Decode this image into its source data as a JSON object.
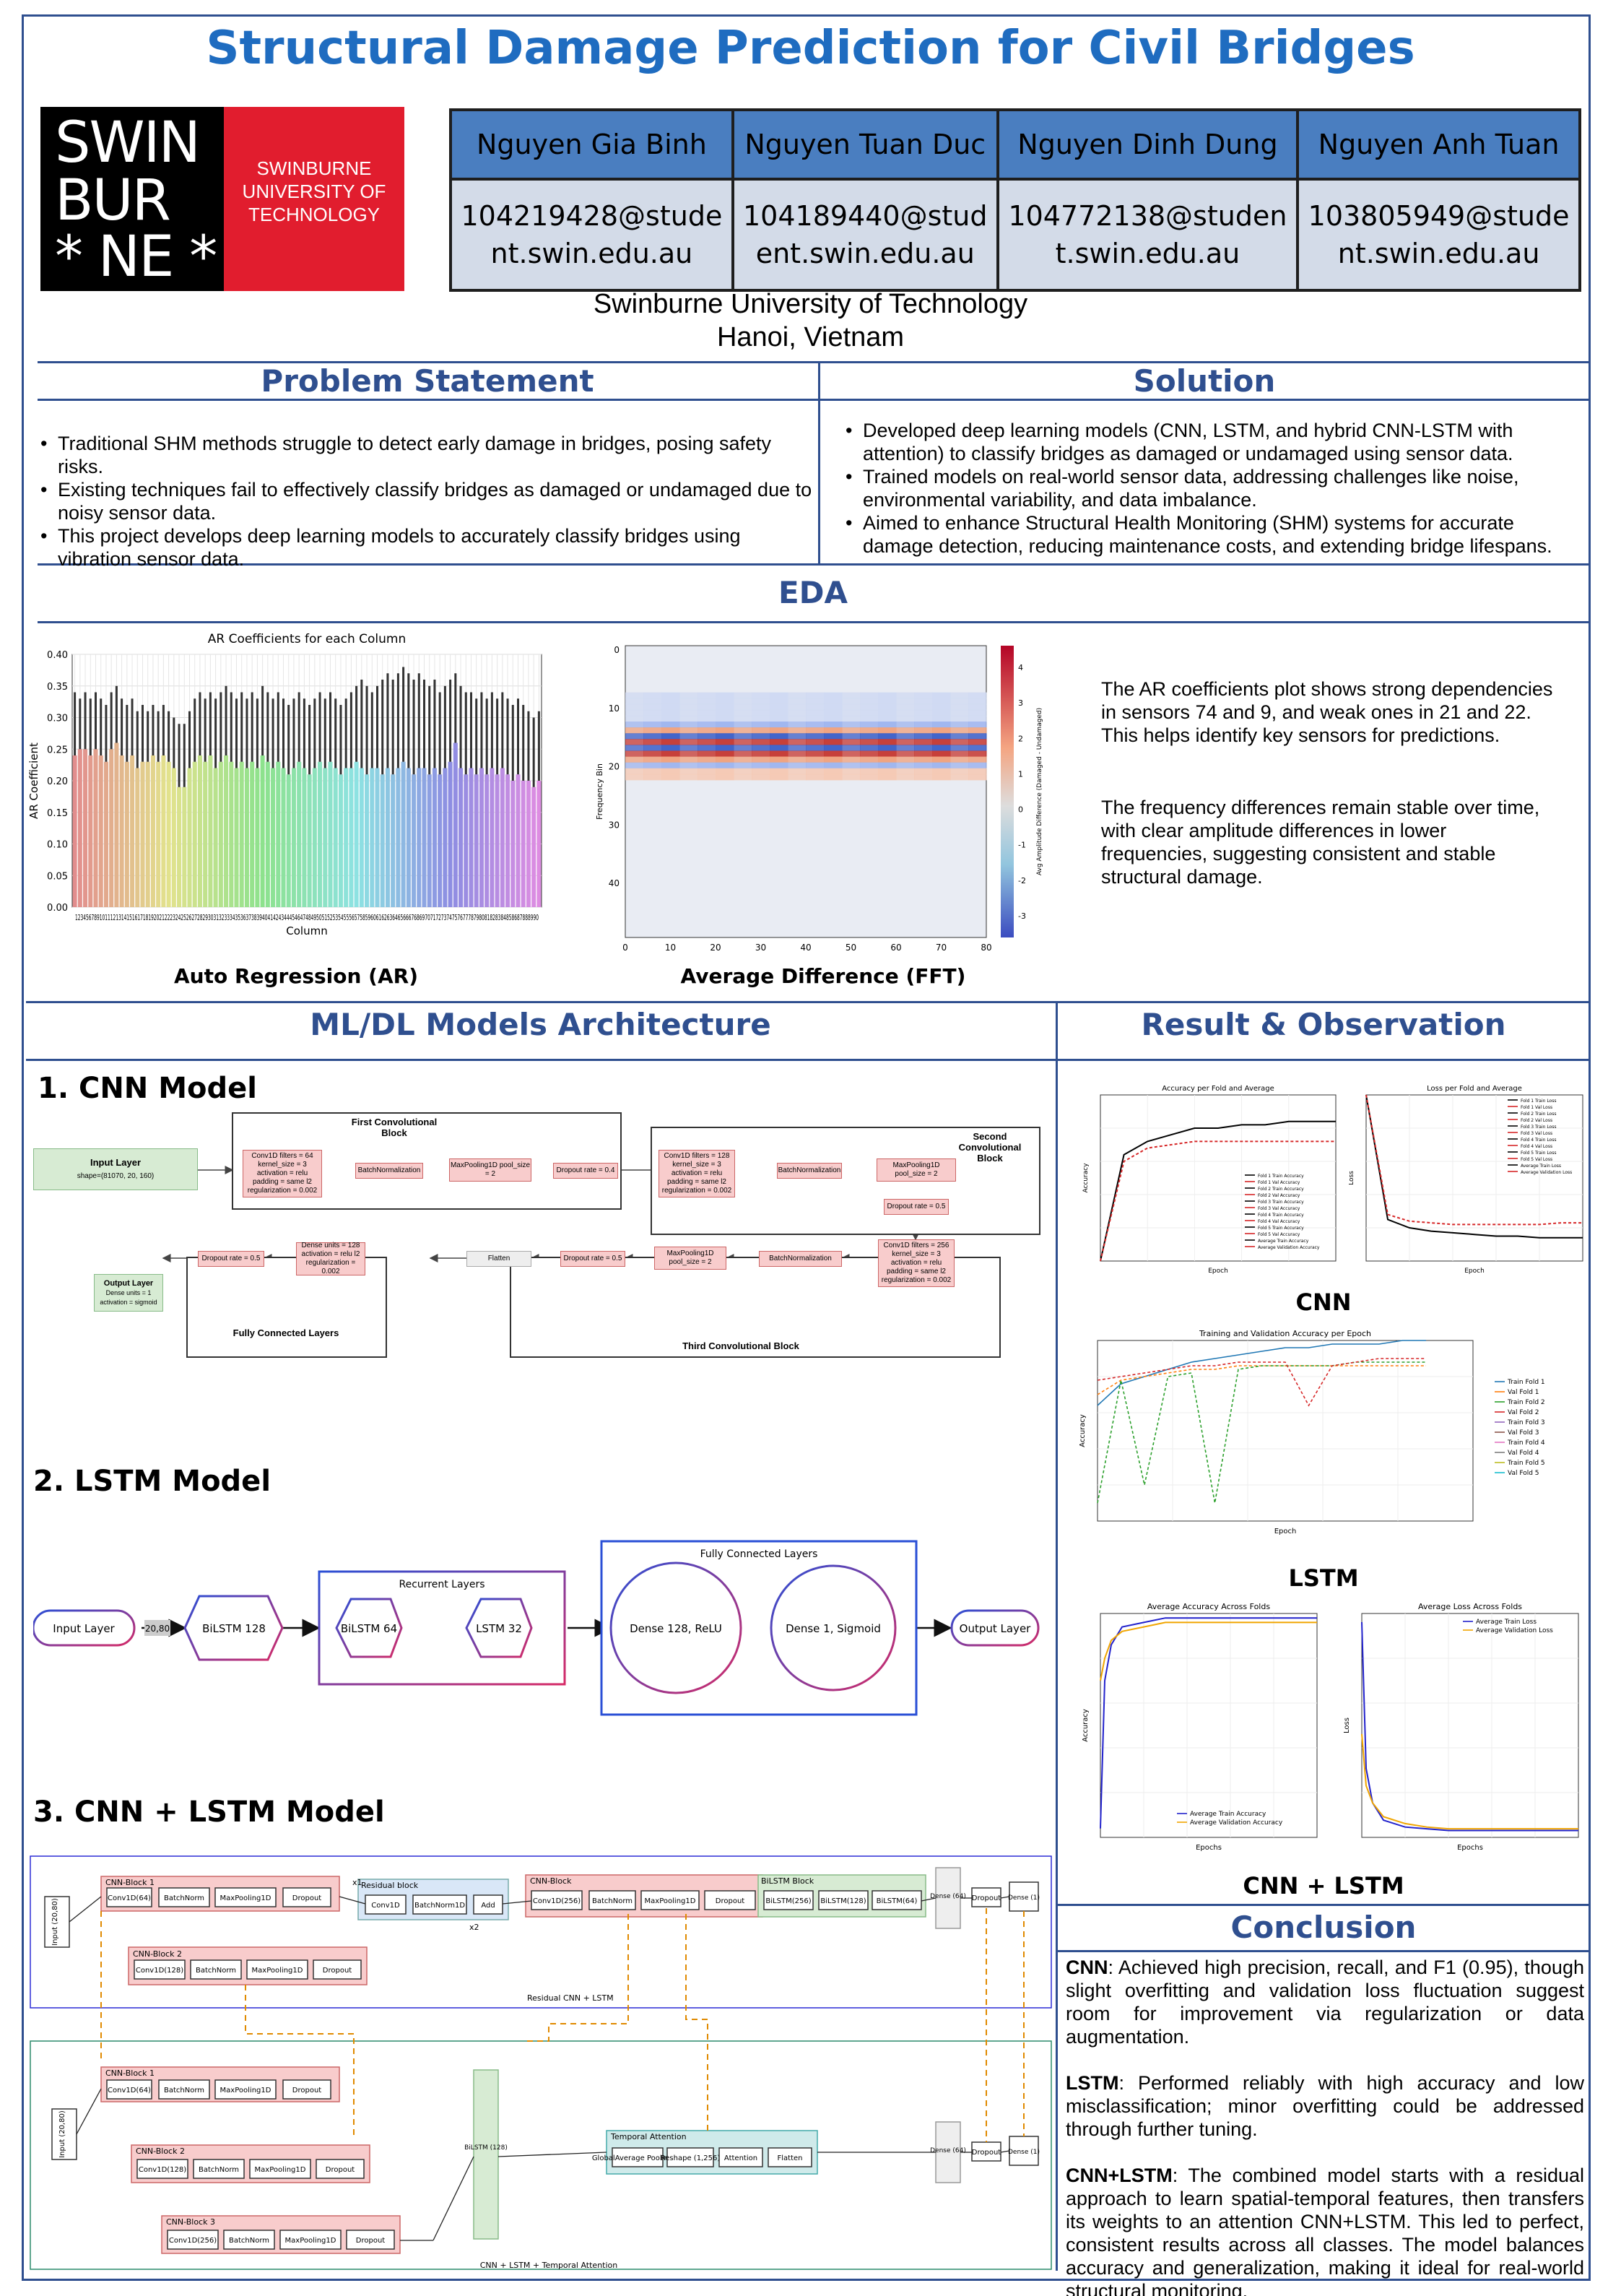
{
  "title": "Structural Damage Prediction for Civil Bridges",
  "logo": {
    "wordmark_lines": [
      "SWIN",
      "BUR",
      "* NE *"
    ],
    "tagline_lines": [
      "SWINBURNE",
      "UNIVERSITY OF",
      "TECHNOLOGY"
    ]
  },
  "authors": [
    {
      "name": "Nguyen Gia Binh",
      "email_lines": [
        "104219428@stude",
        "nt.swin.edu.au"
      ]
    },
    {
      "name": "Nguyen Tuan Duc",
      "email_lines": [
        "104189440@stud",
        "ent.swin.edu.au"
      ]
    },
    {
      "name": "Nguyen Dinh Dung",
      "email_lines": [
        "104772138@studen",
        "t.swin.edu.au"
      ]
    },
    {
      "name": "Nguyen Anh Tuan",
      "email_lines": [
        "103805949@stude",
        "nt.swin.edu.au"
      ]
    }
  ],
  "affiliation": {
    "line1": "Swinburne University of Technology",
    "line2": "Hanoi, Vietnam"
  },
  "problem": {
    "heading": "Problem Statement",
    "bullets": [
      "Traditional SHM methods struggle to detect early damage in bridges, posing safety risks.",
      "Existing techniques fail to effectively classify bridges as damaged or undamaged due to noisy sensor data.",
      "This project develops deep learning models to accurately classify bridges using vibration sensor data."
    ]
  },
  "solution": {
    "heading": "Solution",
    "bullets": [
      "Developed deep learning models (CNN, LSTM, and hybrid CNN-LSTM with attention) to classify bridges as damaged or undamaged using sensor data.",
      "Trained models on real-world sensor data, addressing challenges like noise, environmental variability, and data imbalance.",
      "Aimed to enhance Structural Health Monitoring (SHM) systems for accurate damage detection, reducing maintenance costs, and extending bridge lifespans."
    ]
  },
  "eda": {
    "heading": "EDA",
    "ar_caption": "Auto Regression (AR)",
    "fft_caption": "Average Difference (FFT)",
    "text1": "The AR coefficients plot shows strong dependencies in sensors 74 and 9, and weak ones in 21 and 22. This helps identify key sensors for predictions.",
    "text2": "The frequency differences remain stable over time, with clear amplitude differences in lower frequencies, suggesting consistent and stable structural damage."
  },
  "chart_data": [
    {
      "type": "bar",
      "title": "AR Coefficients for each Column",
      "xlabel": "Column",
      "ylabel": "AR Coefficient",
      "ylim": [
        0,
        0.4
      ],
      "yticks": [
        "0.00",
        "0.05",
        "0.10",
        "0.15",
        "0.20",
        "0.25",
        "0.30",
        "0.35",
        "0.40"
      ],
      "x_range": [
        1,
        90
      ],
      "grid": true,
      "colormap": "rainbow",
      "series": [
        {
          "name": "",
          "values": [
            0.24,
            0.25,
            0.25,
            0.24,
            0.25,
            0.24,
            0.23,
            0.25,
            0.26,
            0.24,
            0.23,
            0.24,
            0.22,
            0.23,
            0.23,
            0.24,
            0.23,
            0.24,
            0.23,
            0.22,
            0.19,
            0.19,
            0.22,
            0.23,
            0.24,
            0.23,
            0.24,
            0.22,
            0.23,
            0.24,
            0.23,
            0.22,
            0.23,
            0.22,
            0.23,
            0.22,
            0.24,
            0.23,
            0.22,
            0.23,
            0.22,
            0.21,
            0.22,
            0.23,
            0.22,
            0.21,
            0.22,
            0.23,
            0.22,
            0.23,
            0.22,
            0.21,
            0.22,
            0.22,
            0.23,
            0.22,
            0.21,
            0.22,
            0.22,
            0.21,
            0.22,
            0.21,
            0.22,
            0.23,
            0.22,
            0.21,
            0.22,
            0.22,
            0.21,
            0.22,
            0.21,
            0.22,
            0.23,
            0.26,
            0.22,
            0.21,
            0.22,
            0.21,
            0.22,
            0.21,
            0.22,
            0.21,
            0.22,
            0.21,
            0.2,
            0.21,
            0.2,
            0.2,
            0.19,
            0.2
          ]
        }
      ],
      "error_top": [
        0.34,
        0.33,
        0.34,
        0.33,
        0.34,
        0.33,
        0.32,
        0.34,
        0.35,
        0.33,
        0.32,
        0.33,
        0.31,
        0.32,
        0.31,
        0.32,
        0.31,
        0.32,
        0.31,
        0.3,
        0.29,
        0.29,
        0.31,
        0.33,
        0.34,
        0.33,
        0.34,
        0.33,
        0.34,
        0.35,
        0.34,
        0.33,
        0.34,
        0.33,
        0.34,
        0.33,
        0.35,
        0.34,
        0.33,
        0.34,
        0.33,
        0.32,
        0.33,
        0.34,
        0.33,
        0.32,
        0.33,
        0.34,
        0.33,
        0.34,
        0.33,
        0.32,
        0.33,
        0.34,
        0.35,
        0.36,
        0.35,
        0.34,
        0.35,
        0.36,
        0.37,
        0.36,
        0.37,
        0.38,
        0.37,
        0.36,
        0.37,
        0.36,
        0.35,
        0.36,
        0.34,
        0.35,
        0.36,
        0.37,
        0.35,
        0.34,
        0.34,
        0.33,
        0.34,
        0.33,
        0.34,
        0.33,
        0.34,
        0.33,
        0.32,
        0.33,
        0.32,
        0.31,
        0.3,
        0.31
      ]
    },
    {
      "type": "heatmap",
      "title": "",
      "xlabel": "Window Index (Time)",
      "ylabel": "Frequency Bin",
      "colorbar_label": "Avg Amplitude Difference (Damaged - Undamaged)",
      "x_ticks": [
        "0",
        "10",
        "20",
        "30",
        "40",
        "50",
        "60",
        "70",
        "80"
      ],
      "y_ticks": [
        "0",
        "10",
        "20",
        "30",
        "40"
      ],
      "colorbar_ticks": [
        "4",
        "3",
        "2",
        "1",
        "0",
        "-1",
        "-2",
        "-3"
      ],
      "colormap": "coolwarm"
    },
    {
      "type": "line",
      "title": "Accuracy per Fold and Average",
      "xlabel": "Epoch",
      "ylabel": "Accuracy",
      "ylim": [
        0.5,
        1.0
      ],
      "xlim": [
        0,
        100
      ],
      "series": [
        {
          "name": "Average Train Accuracy",
          "values": [
            0.5,
            0.82,
            0.86,
            0.88,
            0.9,
            0.9,
            0.91,
            0.91,
            0.92,
            0.92,
            0.92
          ]
        },
        {
          "name": "Average Validation Accuracy",
          "values": [
            0.5,
            0.8,
            0.84,
            0.85,
            0.86,
            0.86,
            0.86,
            0.86,
            0.86,
            0.86,
            0.86
          ]
        }
      ],
      "x": [
        0,
        10,
        20,
        30,
        40,
        50,
        60,
        70,
        80,
        90,
        100
      ],
      "legend_entries": [
        "Fold 1 Train Accuracy",
        "Fold 1 Val Accuracy",
        "Fold 2 Train Accuracy",
        "Fold 2 Val Accuracy",
        "Fold 3 Train Accuracy",
        "Fold 3 Val Accuracy",
        "Fold 4 Train Accuracy",
        "Fold 4 Val Accuracy",
        "Fold 5 Train Accuracy",
        "Fold 5 Val Accuracy",
        "Average Train Accuracy",
        "Average Validation Accuracy"
      ]
    },
    {
      "type": "line",
      "title": "Loss per Fold and Average",
      "xlabel": "Epoch",
      "ylabel": "Loss",
      "xlim": [
        0,
        100
      ],
      "series": [
        {
          "name": "Average Train Loss",
          "values": [
            1.0,
            0.25,
            0.2,
            0.18,
            0.17,
            0.16,
            0.15,
            0.15,
            0.14,
            0.14,
            0.14
          ]
        },
        {
          "name": "Average Validation Loss",
          "values": [
            1.0,
            0.28,
            0.24,
            0.23,
            0.22,
            0.22,
            0.22,
            0.22,
            0.22,
            0.23,
            0.23
          ]
        }
      ],
      "x": [
        0,
        10,
        20,
        30,
        40,
        50,
        60,
        70,
        80,
        90,
        100
      ],
      "legend_entries": [
        "Fold 1 Train Loss",
        "Fold 1 Val Loss",
        "Fold 2 Train Loss",
        "Fold 2 Val Loss",
        "Fold 3 Train Loss",
        "Fold 3 Val Loss",
        "Fold 4 Train Loss",
        "Fold 4 Val Loss",
        "Fold 5 Train Loss",
        "Fold 5 Val Loss",
        "Average Train Loss",
        "Average Validation Loss"
      ]
    },
    {
      "type": "line",
      "title": "Training and Validation Accuracy per Epoch",
      "xlabel": "Epoch",
      "ylabel": "Accuracy",
      "ylim": [
        0.5,
        1.0
      ],
      "xlim": [
        0,
        16
      ],
      "x": [
        0,
        1,
        2,
        3,
        4,
        5,
        6,
        7,
        8,
        9,
        10,
        11,
        12,
        13,
        14
      ],
      "series": [
        {
          "name": "Train Fold 1",
          "values": [
            0.82,
            0.88,
            0.9,
            0.92,
            0.94,
            0.95,
            0.96,
            0.97,
            0.98,
            0.98,
            0.99,
            0.99,
            0.99,
            1.0,
            1.0
          ]
        },
        {
          "name": "Val Fold 1",
          "values": [
            0.85,
            0.89,
            0.9,
            0.91,
            0.92,
            0.92,
            0.93,
            0.93,
            0.93,
            0.93,
            0.93,
            0.93,
            0.93,
            0.93,
            0.93
          ]
        },
        {
          "name": "Val Fold 3",
          "values": [
            0.55,
            0.89,
            0.6,
            0.9,
            0.91,
            0.55,
            0.92,
            0.93,
            0.93,
            0.93,
            0.93,
            0.94,
            0.94,
            0.94,
            0.94
          ]
        },
        {
          "name": "Val Fold 4",
          "values": [
            0.89,
            0.9,
            0.91,
            0.92,
            0.93,
            0.93,
            0.94,
            0.94,
            0.94,
            0.82,
            0.93,
            0.94,
            0.95,
            0.95,
            0.95
          ]
        }
      ],
      "legend_entries": [
        "Train Fold 1",
        "Val Fold 1",
        "Train Fold 2",
        "Val Fold 2",
        "Train Fold 3",
        "Val Fold 3",
        "Train Fold 4",
        "Val Fold 4",
        "Train Fold 5",
        "Val Fold 5"
      ]
    },
    {
      "type": "line",
      "title": "Average Accuracy Across Folds",
      "xlabel": "Epochs",
      "ylabel": "Accuracy",
      "ylim": [
        0.95,
        1.0
      ],
      "xlim": [
        0,
        100
      ],
      "x": [
        0,
        2,
        5,
        10,
        20,
        30,
        40,
        50,
        60,
        70,
        80,
        90,
        100
      ],
      "series": [
        {
          "name": "Average Train Accuracy",
          "values": [
            0.952,
            0.985,
            0.993,
            0.997,
            0.998,
            0.999,
            0.999,
            0.999,
            0.999,
            0.999,
            0.999,
            0.999,
            0.999
          ]
        },
        {
          "name": "Average Validation Accuracy",
          "values": [
            0.985,
            0.99,
            0.994,
            0.996,
            0.997,
            0.998,
            0.998,
            0.998,
            0.998,
            0.998,
            0.998,
            0.998,
            0.998
          ]
        }
      ]
    },
    {
      "type": "line",
      "title": "Average Loss Across Folds",
      "xlabel": "Epochs",
      "ylabel": "Loss",
      "ylim": [
        0,
        0.13
      ],
      "xlim": [
        0,
        100
      ],
      "x": [
        0,
        2,
        5,
        10,
        20,
        30,
        40,
        50,
        60,
        70,
        80,
        90,
        100
      ],
      "series": [
        {
          "name": "Average Train Loss",
          "values": [
            0.125,
            0.04,
            0.02,
            0.01,
            0.006,
            0.005,
            0.004,
            0.004,
            0.004,
            0.004,
            0.004,
            0.004,
            0.004
          ]
        },
        {
          "name": "Average Validation Loss",
          "values": [
            0.06,
            0.03,
            0.02,
            0.012,
            0.008,
            0.006,
            0.005,
            0.005,
            0.005,
            0.005,
            0.005,
            0.005,
            0.005
          ]
        }
      ]
    }
  ],
  "models": {
    "heading": "ML/DL Models Architecture",
    "cnn": {
      "title": "CNN Model",
      "number": "1.",
      "input_layer": "Input Layer",
      "input_shape": "shape=(81070, 20, 160)",
      "first_block": "First Convolutional Block",
      "second_block": "Second Convolutional Block",
      "third_block": "Third Convolutional Block",
      "fc_block": "Fully Connected Layers",
      "output_layer": "Output Layer",
      "output_detail": "Dense units = 1 activation = sigmoid",
      "conv1": "Conv1D filters = 64 kernel_size = 3 activation = relu padding = same l2 regularization = 0.002",
      "conv2": "Conv1D filters = 128 kernel_size = 3 activation = relu padding = same l2 regularization = 0.002",
      "conv3": "Conv1D filters = 256 kernel_size = 3 activation = relu padding = same l2 regularization = 0.002",
      "batchnorm": "BatchNormalization",
      "maxpool": "MaxPooling1D pool_size = 2",
      "dropout4": "Dropout rate = 0.4",
      "dropout5": "Dropout rate = 0.5",
      "flatten": "Flatten",
      "dense128": "Dense units = 128 activation = relu l2 regularization = 0.002"
    },
    "lstm": {
      "title": "2. LSTM Model",
      "input": "Input Layer",
      "shape": "20,80",
      "bilstm128": "BiLSTM 128",
      "recurrent": "Recurrent Layers",
      "bilstm64": "BiLSTM 64",
      "lstm32": "LSTM 32",
      "fc": "Fully Connected Layers",
      "dense128": "Dense 128, ReLU",
      "dense1": "Dense 1, Sigmoid",
      "output": "Output Layer"
    },
    "hybrid": {
      "title": "3. CNN + LSTM Model",
      "input": "Input (20,80)",
      "cnn_block1": "CNN-Block 1",
      "cnn_block2": "CNN-Block 2",
      "cnn_block3": "CNN-Block 3",
      "cnn_block": "CNN-Block",
      "residual_block": "Residual block",
      "bilstm_block": "BiLSTM Block",
      "temporal_attention": "Temporal Attention",
      "conv64": "Conv1D(64)",
      "conv128": "Conv1D(128)",
      "conv256": "Conv1D(256)",
      "conv1d": "Conv1D",
      "batchnorm": "BatchNorm",
      "batchnorm1d": "BatchNorm1D",
      "maxpool": "MaxPooling1D",
      "dropout": "Dropout",
      "add": "Add",
      "bilstm256": "BiLSTM(256)",
      "bilstm128": "BiLSTM(128)",
      "bilstm64": "BiLSTM(64)",
      "bilstm128v": "BiLSTM (128)",
      "gap": "GlobalAverage Pooling1D",
      "reshape": "Reshape (1,256)",
      "attention": "Attention",
      "flatten": "Flatten",
      "dense64": "Dense (64)",
      "dense1": "Dense (1)",
      "x1": "x1",
      "x2": "x2",
      "top_label": "Residual CNN + LSTM",
      "bottom_label": "CNN + LSTM + Temporal Attention"
    }
  },
  "results": {
    "heading": "Result & Observation",
    "cnn_caption": "CNN",
    "lstm_caption": "LSTM",
    "hybrid_caption": "CNN + LSTM"
  },
  "conclusion": {
    "heading": "Conclusion",
    "cnn_label": "CNN",
    "cnn_text": ": Achieved high precision, recall, and F1 (0.95), though slight overfitting and validation loss fluctuation suggest room for improvement via regularization or data augmentation.",
    "lstm_label": "LSTM",
    "lstm_text": ": Performed reliably with high accuracy and low misclassification; minor overfitting could be addressed through further tuning.",
    "hybrid_label": "CNN+LSTM",
    "hybrid_text": ": The combined model starts with a residual approach to learn spatial-temporal features, then transfers its weights to an attention CNN+LSTM. This led to perfect, consistent results across all classes. The model balances accuracy and generalization, making it ideal for real-world structural monitoring."
  }
}
